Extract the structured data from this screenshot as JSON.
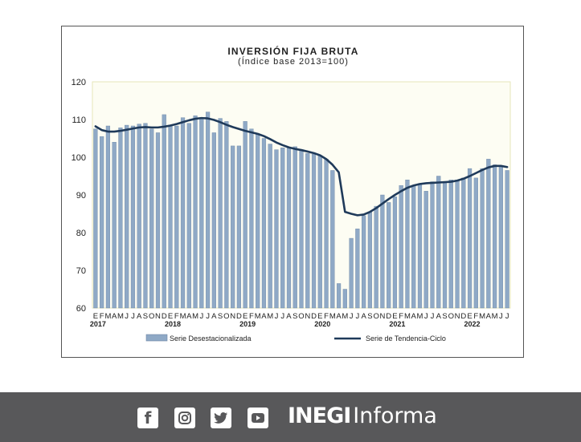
{
  "chart_data": {
    "type": "bar",
    "title": "INVERSIÓN FIJA BRUTA",
    "subtitle": "(Índice base 2013=100)",
    "ylim": [
      60,
      120
    ],
    "yticks": [
      60,
      70,
      80,
      90,
      100,
      110,
      120
    ],
    "grid": false,
    "legend_position": "bottom",
    "categories": [
      "E",
      "F",
      "M",
      "A",
      "M",
      "J",
      "J",
      "A",
      "S",
      "O",
      "N",
      "D",
      "E",
      "F",
      "M",
      "A",
      "M",
      "J",
      "J",
      "A",
      "S",
      "O",
      "N",
      "D",
      "E",
      "F",
      "M",
      "A",
      "M",
      "J",
      "J",
      "A",
      "S",
      "O",
      "N",
      "D",
      "E",
      "F",
      "M",
      "A",
      "M",
      "J",
      "J",
      "A",
      "S",
      "O",
      "N",
      "D",
      "E",
      "F",
      "M",
      "A",
      "M",
      "J",
      "J",
      "A",
      "S",
      "O",
      "N",
      "D",
      "E",
      "F",
      "M",
      "A",
      "M",
      "J",
      "J"
    ],
    "year_labels": [
      "2017",
      "2018",
      "2019",
      "2020",
      "2021",
      "2022"
    ],
    "series": [
      {
        "name": "Serie Desestacionalizada",
        "type": "bar",
        "color": "#8fa9c6",
        "values": [
          107.5,
          105.5,
          108.3,
          104.0,
          107.8,
          108.5,
          108.3,
          108.8,
          109.0,
          107.5,
          106.5,
          111.3,
          108.5,
          108.3,
          110.5,
          109.0,
          111.0,
          110.5,
          112.0,
          106.5,
          110.3,
          109.5,
          103.0,
          103.0,
          109.5,
          107.5,
          106.0,
          105.0,
          103.5,
          102.0,
          102.5,
          102.5,
          102.8,
          102.0,
          101.0,
          100.8,
          100.5,
          99.5,
          96.5,
          66.5,
          65.0,
          78.5,
          81.0,
          84.5,
          85.5,
          87.0,
          90.0,
          88.0,
          89.5,
          92.5,
          94.0,
          92.5,
          93.0,
          91.0,
          93.5,
          95.0,
          93.5,
          94.0,
          94.0,
          94.5,
          97.0,
          94.5,
          97.0,
          99.5,
          98.0,
          97.5,
          96.5
        ]
      },
      {
        "name": "Serie de Tendencia-Ciclo",
        "type": "line",
        "color": "#1f3a5a",
        "values": [
          108.2,
          107.2,
          106.8,
          106.8,
          107.0,
          107.3,
          107.6,
          107.9,
          108.0,
          107.9,
          107.9,
          108.1,
          108.4,
          108.8,
          109.3,
          109.8,
          110.2,
          110.4,
          110.3,
          109.9,
          109.3,
          108.6,
          108.0,
          107.5,
          107.0,
          106.6,
          106.2,
          105.6,
          104.8,
          103.9,
          103.2,
          102.6,
          102.2,
          101.9,
          101.5,
          101.1,
          100.5,
          99.5,
          98.0,
          96.0,
          85.5,
          85.0,
          84.6,
          84.8,
          85.5,
          86.5,
          87.7,
          88.9,
          90.0,
          91.0,
          91.9,
          92.5,
          92.9,
          93.1,
          93.2,
          93.3,
          93.4,
          93.5,
          93.8,
          94.3,
          95.0,
          95.8,
          96.6,
          97.3,
          97.7,
          97.7,
          97.4
        ]
      }
    ]
  },
  "footer": {
    "social_icons": [
      "facebook-icon",
      "instagram-icon",
      "twitter-icon",
      "youtube-icon"
    ],
    "brand_bold": "INEGI",
    "brand_light": "Informa",
    "background": "#58585a"
  }
}
